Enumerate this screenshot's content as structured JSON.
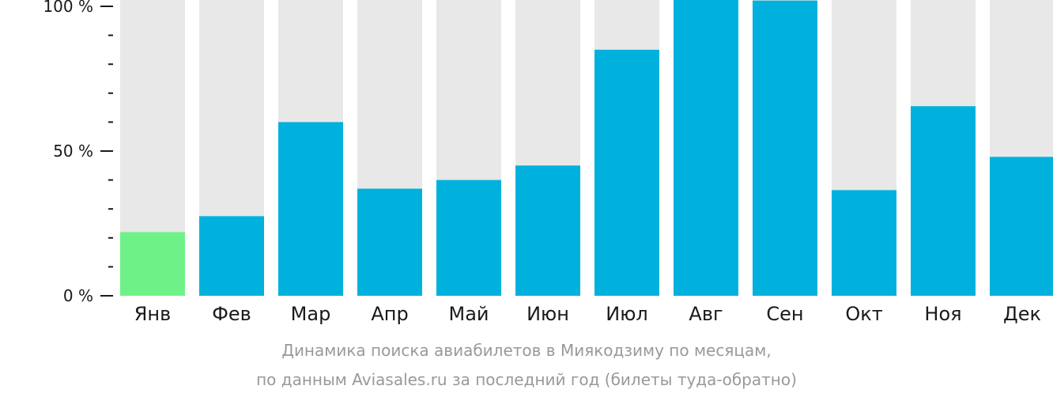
{
  "chart_data": {
    "type": "bar",
    "categories": [
      "Янв",
      "Фев",
      "Мар",
      "Апр",
      "Май",
      "Июн",
      "Июл",
      "Авг",
      "Сен",
      "Окт",
      "Ноя",
      "Дек"
    ],
    "values": [
      22,
      27.5,
      60,
      37,
      40,
      45,
      85,
      103,
      102,
      36.5,
      65.5,
      48
    ],
    "ylim": [
      0,
      100
    ],
    "yticks": [
      {
        "value": 0,
        "label": "0 %"
      },
      {
        "value": 50,
        "label": "50 %"
      },
      {
        "value": 100,
        "label": "100 %"
      }
    ],
    "minor_ticks": [
      10,
      20,
      30,
      40,
      60,
      70,
      80,
      90
    ],
    "highlight_index": 0,
    "colors": {
      "bar": "#00b1dd",
      "highlight": "#6ef287",
      "background_bar": "#e8e8e8",
      "axis": "#1a1a1a",
      "caption": "#999999"
    },
    "caption": [
      "Динамика поиска авиабилетов в Миякодзиму по месяцам,",
      "по данным Aviasales.ru за последний год (билеты туда-обратно)"
    ]
  }
}
